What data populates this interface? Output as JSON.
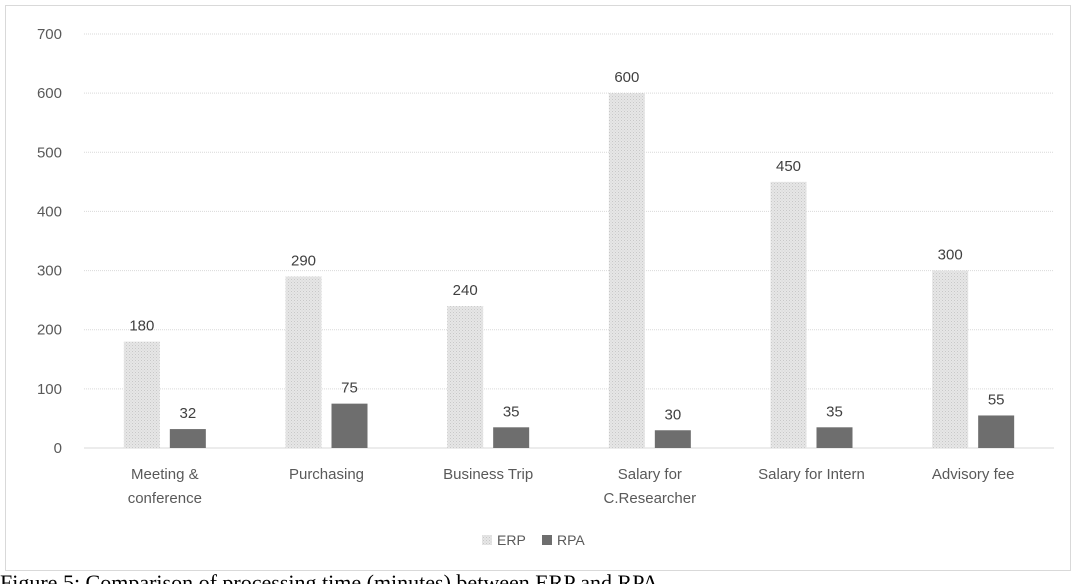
{
  "chart_data": {
    "type": "bar",
    "title": "",
    "xlabel": "",
    "ylabel": "",
    "ylim": [
      0,
      700
    ],
    "yticks": [
      0,
      100,
      200,
      300,
      400,
      500,
      600,
      700
    ],
    "grid": true,
    "legend_position": "bottom",
    "categories": [
      [
        "Meeting &",
        "conference"
      ],
      [
        "Purchasing"
      ],
      [
        "Business Trip"
      ],
      [
        "Salary for",
        "C.Researcher"
      ],
      [
        "Salary for Intern"
      ],
      [
        "Advisory fee"
      ]
    ],
    "series": [
      {
        "name": "ERP",
        "values": [
          180,
          290,
          240,
          600,
          450,
          300
        ],
        "color": "#e3e3e3"
      },
      {
        "name": "RPA",
        "values": [
          32,
          75,
          35,
          30,
          35,
          55
        ],
        "color": "#6e6e6e"
      }
    ],
    "data_labels": true
  },
  "caption": "Figure 5: Comparison of processing time (minutes) between ERP and RPA"
}
